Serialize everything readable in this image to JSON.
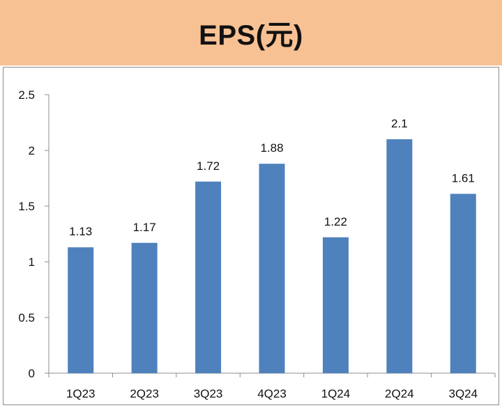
{
  "header": {
    "title": "EPS(元)"
  },
  "colors": {
    "header_bg": "#f8c193",
    "bar": "#4f81bd",
    "axis": "#8c8c8c"
  },
  "chart_data": {
    "type": "bar",
    "title": "EPS(元)",
    "xlabel": "",
    "ylabel": "",
    "categories": [
      "1Q23",
      "2Q23",
      "3Q23",
      "4Q23",
      "1Q24",
      "2Q24",
      "3Q24"
    ],
    "values": [
      1.13,
      1.17,
      1.72,
      1.88,
      1.22,
      2.1,
      1.61
    ],
    "value_labels": [
      "1.13",
      "1.17",
      "1.72",
      "1.88",
      "1.22",
      "2.1",
      "1.61"
    ],
    "ylim": [
      0,
      2.5
    ],
    "yticks": [
      0,
      0.5,
      1,
      1.5,
      2,
      2.5
    ],
    "ytick_labels": [
      "0",
      "0.5",
      "1",
      "1.5",
      "2",
      "2.5"
    ],
    "grid": false,
    "legend": "none"
  }
}
